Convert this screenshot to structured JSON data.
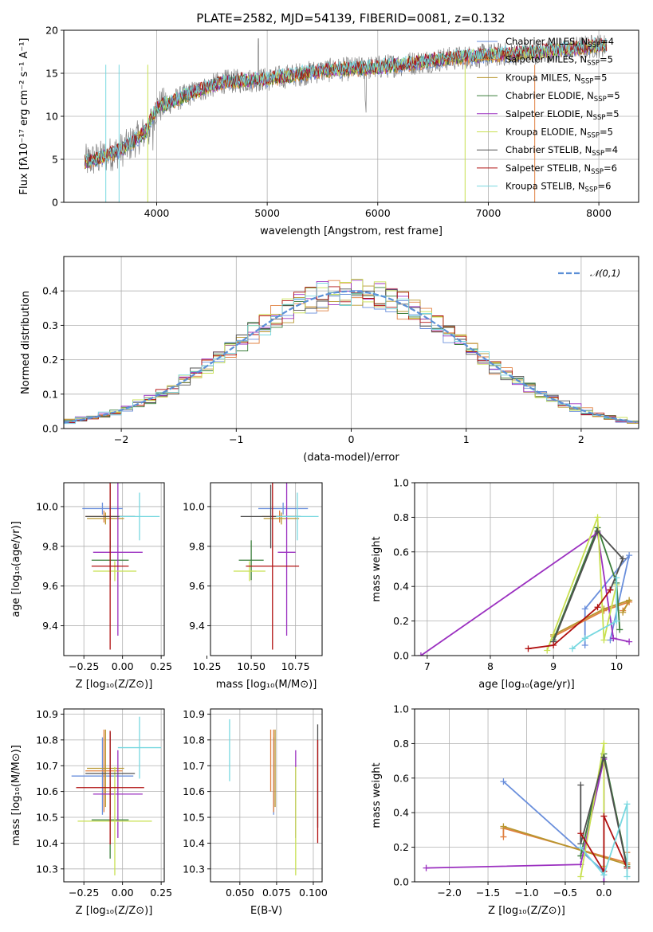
{
  "figure": {
    "title": "PLATE=2582, MJD=54139, FIBERID=0081, z=0.132"
  },
  "colors": {
    "chabrier_miles": "#6a8fdc",
    "salpeter_miles": "#e08040",
    "kroupa_miles": "#b8962e",
    "chabrier_elodie": "#3a7d3a",
    "salpeter_elodie": "#9b30c0",
    "kroupa_elodie": "#c8e050",
    "chabrier_stelib": "#505050",
    "salpeter_stelib": "#b01010",
    "kroupa_stelib": "#78d8e0",
    "data": "#808080",
    "gaussian": "#5b8fd6",
    "grid": "#b0b0b0"
  },
  "chart_data": [
    {
      "id": "spectrum",
      "type": "line",
      "xlabel": "wavelength [Angstrom, rest frame]",
      "ylabel": "Flux [fλ10⁻¹⁷ erg cm⁻² s⁻¹ A⁻¹]",
      "xlim": [
        3160,
        8360
      ],
      "ylim": [
        0,
        20
      ],
      "xticks": [
        4000,
        5000,
        6000,
        7000,
        8000
      ],
      "yticks": [
        0,
        5,
        10,
        15,
        20
      ],
      "continuum": {
        "x": [
          3350,
          3500,
          3700,
          3900,
          4000,
          4300,
          4600,
          5000,
          5500,
          6000,
          6500,
          7000,
          7500,
          8000,
          8050
        ],
        "y": [
          4.7,
          5.2,
          6.2,
          8.2,
          11.0,
          12.6,
          14.0,
          14.3,
          15.3,
          15.7,
          16.5,
          17.1,
          17.5,
          18.2,
          18.2
        ]
      },
      "legend": {
        "placement": "top-right",
        "entries": [
          {
            "label": "Chabrier MILES, N",
            "sub": "SSP",
            "suffix": "=4",
            "color_key": "chabrier_miles"
          },
          {
            "label": "Salpeter MILES, N",
            "sub": "SSP",
            "suffix": "=5",
            "color_key": "salpeter_miles"
          },
          {
            "label": "Kroupa MILES, N",
            "sub": "SSP",
            "suffix": "=5",
            "color_key": "kroupa_miles"
          },
          {
            "label": "Chabrier ELODIE, N",
            "sub": "SSP",
            "suffix": "=5",
            "color_key": "chabrier_elodie"
          },
          {
            "label": "Salpeter ELODIE, N",
            "sub": "SSP",
            "suffix": "=5",
            "color_key": "salpeter_elodie"
          },
          {
            "label": "Kroupa ELODIE, N",
            "sub": "SSP",
            "suffix": "=5",
            "color_key": "kroupa_elodie"
          },
          {
            "label": "Chabrier STELIB, N",
            "sub": "SSP",
            "suffix": "=4",
            "color_key": "chabrier_stelib"
          },
          {
            "label": "Salpeter STELIB, N",
            "sub": "SSP",
            "suffix": "=6",
            "color_key": "salpeter_stelib"
          },
          {
            "label": "Kroupa STELIB, N",
            "sub": "SSP",
            "suffix": "=6",
            "color_key": "kroupa_stelib"
          }
        ]
      }
    },
    {
      "id": "residuals",
      "type": "histogram",
      "xlabel": "(data-model)/error",
      "ylabel": "Normed distribution",
      "xlim": [
        -2.5,
        2.5
      ],
      "ylim": [
        0,
        0.5
      ],
      "xticks": [
        -2,
        -1,
        0,
        1,
        2
      ],
      "yticks": [
        0.0,
        0.1,
        0.2,
        0.3,
        0.4
      ],
      "bin_width": 0.1,
      "legend": {
        "placement": "top-right",
        "label": "𝒩(0,1)"
      }
    },
    {
      "id": "age_vs_Z",
      "type": "scatter",
      "xlabel": "Z [log₁₀(Z/Z⊙)]",
      "ylabel": "age  [log₁₀(age/yr)]",
      "xlim": [
        -0.38,
        0.27
      ],
      "ylim": [
        9.25,
        10.12
      ],
      "xticks": [
        -0.25,
        0.0,
        0.25
      ],
      "xticklabels": [
        "−0.25",
        "0.00",
        "0.25"
      ],
      "yticks": [
        9.4,
        9.6,
        9.8,
        10.0
      ],
      "points": [
        {
          "key": "chabrier_miles",
          "x": -0.13,
          "xerr": 0.13,
          "y": 9.99,
          "yerr": 0.03
        },
        {
          "key": "salpeter_miles",
          "x": -0.12,
          "xerr": 0.12,
          "y": 9.95,
          "yerr": 0.03
        },
        {
          "key": "kroupa_miles",
          "x": -0.11,
          "xerr": 0.12,
          "y": 9.94,
          "yerr": 0.03
        },
        {
          "key": "chabrier_elodie",
          "x": -0.08,
          "xerr": 0.12,
          "y": 9.73,
          "yerr": 0.1
        },
        {
          "key": "salpeter_elodie",
          "x": -0.03,
          "xerr": 0.16,
          "y": 9.77,
          "yerr": 0.42
        },
        {
          "key": "kroupa_elodie",
          "x": -0.05,
          "xerr": 0.14,
          "y": 9.675,
          "yerr": 0.05
        },
        {
          "key": "chabrier_stelib",
          "x": -0.08,
          "xerr": 0.16,
          "y": 9.95,
          "yerr": 0.16
        },
        {
          "key": "salpeter_stelib",
          "x": -0.08,
          "xerr": 0.12,
          "y": 9.7,
          "yerr": 0.42
        },
        {
          "key": "kroupa_stelib",
          "x": 0.11,
          "xerr": 0.13,
          "y": 9.95,
          "yerr": 0.12
        }
      ]
    },
    {
      "id": "age_vs_mass",
      "type": "scatter",
      "xlabel": "mass [log₁₀(M/M⊙)]",
      "ylabel": "",
      "xlim": [
        10.27,
        10.9
      ],
      "ylim": [
        9.25,
        10.12
      ],
      "xticks": [
        10.25,
        10.5,
        10.75
      ],
      "xticklabels": [
        "10.25",
        "10.50",
        "10.75"
      ],
      "yticks": [
        9.4,
        9.6,
        9.8,
        10.0
      ],
      "points": [
        {
          "key": "chabrier_miles",
          "x": 10.68,
          "xerr": 0.14,
          "y": 9.99,
          "yerr": 0.03
        },
        {
          "key": "salpeter_miles",
          "x": 10.66,
          "xerr": 0.1,
          "y": 9.95,
          "yerr": 0.03
        },
        {
          "key": "kroupa_miles",
          "x": 10.67,
          "xerr": 0.1,
          "y": 9.94,
          "yerr": 0.03
        },
        {
          "key": "chabrier_elodie",
          "x": 10.5,
          "xerr": 0.07,
          "y": 9.73,
          "yerr": 0.1
        },
        {
          "key": "salpeter_elodie",
          "x": 10.7,
          "xerr": 0.05,
          "y": 9.77,
          "yerr": 0.42
        },
        {
          "key": "kroupa_elodie",
          "x": 10.49,
          "xerr": 0.09,
          "y": 9.675,
          "yerr": 0.05
        },
        {
          "key": "chabrier_stelib",
          "x": 10.61,
          "xerr": 0.17,
          "y": 9.95,
          "yerr": 0.16
        },
        {
          "key": "salpeter_stelib",
          "x": 10.62,
          "xerr": 0.15,
          "y": 9.7,
          "yerr": 0.42
        },
        {
          "key": "kroupa_stelib",
          "x": 10.76,
          "xerr": 0.12,
          "y": 9.95,
          "yerr": 0.12
        }
      ]
    },
    {
      "id": "weight_vs_age",
      "type": "line",
      "xlabel": "age  [log₁₀(age/yr)]",
      "ylabel": "mass weight",
      "xlim": [
        6.8,
        10.35
      ],
      "ylim": [
        0,
        1
      ],
      "xticks": [
        7,
        8,
        9,
        10
      ],
      "yticks": [
        0.0,
        0.2,
        0.4,
        0.6,
        0.8,
        1.0
      ],
      "series": [
        {
          "key": "chabrier_miles",
          "x": [
            9.5,
            9.5,
            10.2,
            9.9
          ],
          "y": [
            0.06,
            0.27,
            0.58,
            0.09
          ]
        },
        {
          "key": "salpeter_miles",
          "x": [
            9.0,
            9.8,
            10.2,
            10.1
          ],
          "y": [
            0.11,
            0.26,
            0.31,
            0.26
          ]
        },
        {
          "key": "kroupa_miles",
          "x": [
            9.0,
            9.8,
            10.2,
            10.1
          ],
          "y": [
            0.12,
            0.27,
            0.32,
            0.25
          ]
        },
        {
          "key": "chabrier_elodie",
          "x": [
            9.0,
            9.7,
            10.0,
            10.05
          ],
          "y": [
            0.09,
            0.74,
            0.42,
            0.15
          ]
        },
        {
          "key": "salpeter_elodie",
          "x": [
            6.9,
            9.7,
            9.95,
            10.2
          ],
          "y": [
            0.0,
            0.71,
            0.1,
            0.08
          ]
        },
        {
          "key": "kroupa_elodie",
          "x": [
            8.9,
            9.7,
            9.8,
            10.0
          ],
          "y": [
            0.03,
            0.8,
            0.09,
            0.41
          ]
        },
        {
          "key": "chabrier_stelib",
          "x": [
            9.0,
            9.7,
            10.1,
            9.9
          ],
          "y": [
            0.08,
            0.72,
            0.56,
            0.38
          ]
        },
        {
          "key": "salpeter_stelib",
          "x": [
            8.6,
            9.0,
            9.7,
            9.9
          ],
          "y": [
            0.04,
            0.06,
            0.28,
            0.38
          ]
        },
        {
          "key": "kroupa_stelib",
          "x": [
            9.3,
            9.5,
            10.0,
            10.0
          ],
          "y": [
            0.04,
            0.1,
            0.2,
            0.45
          ]
        }
      ]
    },
    {
      "id": "mass_vs_Z",
      "type": "scatter",
      "xlabel": "Z [log₁₀(Z/Z⊙)]",
      "ylabel": "mass [log₁₀(M/M⊙)]",
      "xlim": [
        -0.38,
        0.27
      ],
      "ylim": [
        10.25,
        10.92
      ],
      "xticks": [
        -0.25,
        0.0,
        0.25
      ],
      "xticklabels": [
        "−0.25",
        "0.00",
        "0.25"
      ],
      "yticks": [
        10.3,
        10.4,
        10.5,
        10.6,
        10.7,
        10.8,
        10.9
      ],
      "points": [
        {
          "key": "chabrier_miles",
          "x": -0.13,
          "xerr": 0.2,
          "y": 10.66,
          "yerr": 0.15
        },
        {
          "key": "salpeter_miles",
          "x": -0.12,
          "xerr": 0.12,
          "y": 10.68,
          "yerr": 0.16
        },
        {
          "key": "kroupa_miles",
          "x": -0.11,
          "xerr": 0.12,
          "y": 10.69,
          "yerr": 0.15
        },
        {
          "key": "chabrier_elodie",
          "x": -0.08,
          "xerr": 0.12,
          "y": 10.49,
          "yerr": 0.15
        },
        {
          "key": "salpeter_elodie",
          "x": -0.03,
          "xerr": 0.16,
          "y": 10.59,
          "yerr": 0.17
        },
        {
          "key": "kroupa_elodie",
          "x": -0.05,
          "xerr": 0.24,
          "y": 10.485,
          "yerr": 0.21
        },
        {
          "key": "chabrier_stelib",
          "x": -0.08,
          "xerr": 0.16,
          "y": 10.67,
          "yerr": 0.16
        },
        {
          "key": "salpeter_stelib",
          "x": -0.08,
          "xerr": 0.22,
          "y": 10.615,
          "yerr": 0.22
        },
        {
          "key": "kroupa_stelib",
          "x": 0.11,
          "xerr": 0.14,
          "y": 10.77,
          "yerr": 0.12
        }
      ]
    },
    {
      "id": "mass_vs_ebv",
      "type": "scatter",
      "xlabel": "E(B-V)",
      "ylabel": "",
      "xlim": [
        0.03,
        0.106
      ],
      "ylim": [
        10.25,
        10.92
      ],
      "xticks": [
        0.05,
        0.075,
        0.1
      ],
      "xticklabels": [
        "0.050",
        "0.075",
        "0.100"
      ],
      "yticks": [
        10.3,
        10.4,
        10.5,
        10.6,
        10.7,
        10.8,
        10.9
      ],
      "points": [
        {
          "key": "chabrier_miles",
          "x": 0.073,
          "y": 10.66,
          "yerr": 0.15
        },
        {
          "key": "salpeter_miles",
          "x": 0.073,
          "y": 10.68,
          "yerr": 0.16
        },
        {
          "key": "kroupa_miles",
          "x": 0.074,
          "y": 10.69,
          "yerr": 0.15
        },
        {
          "key": "salpeter_elodie",
          "x": 0.088,
          "y": 10.59,
          "yerr": 0.17
        },
        {
          "key": "kroupa_elodie",
          "x": 0.088,
          "y": 10.485,
          "yerr": 0.21
        },
        {
          "key": "chabrier_stelib",
          "x": 0.103,
          "y": 10.66,
          "yerr": 0.2
        },
        {
          "key": "salpeter_stelib",
          "x": 0.103,
          "y": 10.6,
          "yerr": 0.2
        },
        {
          "key": "kroupa_stelib",
          "x": 0.043,
          "y": 10.76,
          "yerr": 0.12
        },
        {
          "key": "salpeter_miles",
          "x": 0.071,
          "y": 10.72,
          "yerr": 0.12
        }
      ]
    },
    {
      "id": "weight_vs_Z",
      "type": "line",
      "xlabel": "Z [log₁₀(Z/Z⊙)]",
      "ylabel": "mass weight",
      "xlim": [
        -2.45,
        0.45
      ],
      "ylim": [
        0,
        1
      ],
      "xticks": [
        -2.0,
        -1.5,
        -1.0,
        -0.5,
        0.0
      ],
      "xticklabels": [
        "−2.0",
        "−1.5",
        "−1.0",
        "−0.5",
        "0.0"
      ],
      "yticks": [
        0.0,
        0.2,
        0.4,
        0.6,
        0.8,
        1.0
      ],
      "series": [
        {
          "key": "chabrier_miles",
          "x": [
            -1.3,
            0.0,
            0.0
          ],
          "y": [
            0.58,
            0.06,
            0.09
          ]
        },
        {
          "key": "salpeter_miles",
          "x": [
            -1.3,
            -1.3,
            0.3,
            0.3
          ],
          "y": [
            0.26,
            0.31,
            0.11,
            0.17
          ]
        },
        {
          "key": "kroupa_miles",
          "x": [
            -1.3,
            0.3
          ],
          "y": [
            0.32,
            0.1
          ]
        },
        {
          "key": "chabrier_elodie",
          "x": [
            -0.3,
            0.0,
            0.3
          ],
          "y": [
            0.15,
            0.74,
            0.09
          ]
        },
        {
          "key": "salpeter_elodie",
          "x": [
            -2.3,
            -0.3,
            0.0,
            0.0
          ],
          "y": [
            0.08,
            0.1,
            0.71,
            0.0
          ]
        },
        {
          "key": "kroupa_elodie",
          "x": [
            -0.3,
            0.0,
            0.0
          ],
          "y": [
            0.03,
            0.8,
            0.09
          ]
        },
        {
          "key": "chabrier_stelib",
          "x": [
            -0.3,
            -0.3,
            0.0,
            0.3
          ],
          "y": [
            0.56,
            0.22,
            0.72,
            0.08
          ]
        },
        {
          "key": "salpeter_stelib",
          "x": [
            -0.3,
            0.0,
            0.0,
            0.3
          ],
          "y": [
            0.28,
            0.06,
            0.38,
            0.08
          ]
        },
        {
          "key": "kroupa_stelib",
          "x": [
            -0.3,
            0.0,
            0.3,
            0.3
          ],
          "y": [
            0.2,
            0.04,
            0.45,
            0.03
          ]
        }
      ]
    }
  ]
}
